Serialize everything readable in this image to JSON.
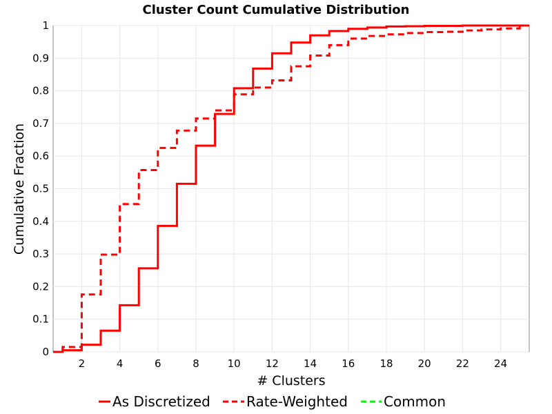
{
  "chart_data": {
    "type": "line",
    "title": "Cluster Count Cumulative Distribution",
    "xlabel": "# Clusters",
    "ylabel": "Cumulative Fraction",
    "xlim": [
      0.5,
      25.5
    ],
    "ylim": [
      0,
      1
    ],
    "x_ticks": [
      2,
      4,
      6,
      8,
      10,
      12,
      14,
      16,
      18,
      20,
      22,
      24
    ],
    "y_ticks": [
      0,
      0.1,
      0.2,
      0.3,
      0.4,
      0.5,
      0.6,
      0.7,
      0.8,
      0.9,
      1
    ],
    "y_tick_labels": [
      "0",
      "0.1",
      "0.2",
      "0.3",
      "0.4",
      "0.5",
      "0.6",
      "0.7",
      "0.8",
      "0.9",
      "1"
    ],
    "grid": true,
    "legend_position": "bottom",
    "series": [
      {
        "name": "As Discretized",
        "style": "solid",
        "color": "#ff0000",
        "x": [
          0.5,
          1,
          2,
          3,
          4,
          5,
          6,
          7,
          8,
          9,
          10,
          11,
          12,
          13,
          14,
          15,
          16,
          17,
          18,
          19,
          20,
          21,
          22,
          23,
          24,
          25,
          25.5
        ],
        "y": [
          0,
          0.005,
          0.022,
          0.065,
          0.143,
          0.256,
          0.386,
          0.515,
          0.632,
          0.729,
          0.808,
          0.868,
          0.915,
          0.948,
          0.97,
          0.983,
          0.99,
          0.994,
          0.997,
          0.998,
          0.999,
          0.999,
          1,
          1,
          1,
          1,
          1
        ]
      },
      {
        "name": "Rate-Weighted",
        "style": "dashed",
        "color": "#ff0000",
        "x": [
          0.5,
          1,
          2,
          3,
          4,
          5,
          6,
          7,
          8,
          9,
          10,
          11,
          12,
          13,
          14,
          15,
          16,
          17,
          18,
          19,
          20,
          21,
          22,
          23,
          24,
          25,
          25.5
        ],
        "y": [
          0,
          0.015,
          0.176,
          0.298,
          0.453,
          0.557,
          0.625,
          0.678,
          0.715,
          0.74,
          0.789,
          0.81,
          0.832,
          0.875,
          0.908,
          0.94,
          0.96,
          0.968,
          0.973,
          0.977,
          0.98,
          0.981,
          0.985,
          0.988,
          0.991,
          1,
          1
        ]
      },
      {
        "name": "Common",
        "style": "dashed",
        "color": "#00ff00",
        "x": [],
        "y": []
      }
    ]
  }
}
